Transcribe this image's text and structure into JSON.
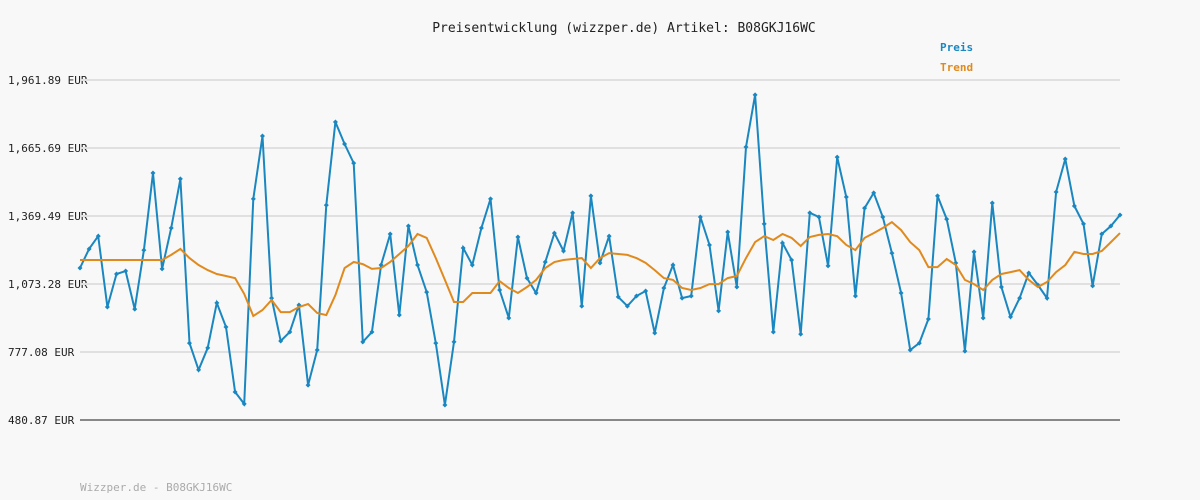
{
  "chart_data": {
    "type": "line",
    "title": "Preisentwicklung (wizzper.de) Artikel: B08GKJ16WC",
    "footer": "Wizzper.de - B08GKJ16WC",
    "ylim": [
      480.87,
      1961.89
    ],
    "yticks": [
      {
        "value": 480.87,
        "label": "480.87 EUR"
      },
      {
        "value": 777.08,
        "label": "777.08 EUR"
      },
      {
        "value": 1073.28,
        "label": "1,073.28 EUR"
      },
      {
        "value": 1369.49,
        "label": "1,369.49 EUR"
      },
      {
        "value": 1665.69,
        "label": "1,665.69 EUR"
      },
      {
        "value": 1961.89,
        "label": "1,961.89 EUR"
      }
    ],
    "grid": true,
    "legend": "top-right",
    "series": [
      {
        "name": "Preis",
        "color": "#1a87c0",
        "markers": true,
        "values": [
          1143,
          1226,
          1282,
          973,
          1117,
          1130,
          964,
          1221,
          1557,
          1139,
          1317,
          1531,
          816,
          699,
          795,
          991,
          886,
          603,
          551,
          1444,
          1718,
          1012,
          825,
          864,
          982,
          633,
          786,
          1417,
          1779,
          1683,
          1600,
          821,
          864,
          1156,
          1291,
          938,
          1326,
          1156,
          1038,
          816,
          546,
          821,
          1230,
          1156,
          1317,
          1444,
          1047,
          925,
          1278,
          1099,
          1034,
          1169,
          1295,
          1217,
          1383,
          977,
          1457,
          1165,
          1282,
          1017,
          977,
          1021,
          1043,
          860,
          1056,
          1156,
          1012,
          1021,
          1365,
          1243,
          956,
          1300,
          1060,
          1670,
          1897,
          1335,
          864,
          1252,
          1178,
          855,
          1383,
          1365,
          1152,
          1626,
          1452,
          1021,
          1404,
          1470,
          1365,
          1208,
          1034,
          786,
          816,
          921,
          1457,
          1356,
          1165,
          781,
          1213,
          925,
          1426,
          1060,
          930,
          1012,
          1121,
          1069,
          1012,
          1474,
          1618,
          1413,
          1335,
          1065,
          1291,
          1326,
          1374
        ]
      },
      {
        "name": "Trend",
        "color": "#e08a1e",
        "markers": false,
        "values": [
          1178,
          1178,
          1178,
          1178,
          1178,
          1178,
          1178,
          1178,
          1178,
          1178,
          1200,
          1226,
          1186,
          1156,
          1134,
          1117,
          1108,
          1099,
          1030,
          934,
          960,
          1004,
          951,
          951,
          973,
          986,
          947,
          938,
          1025,
          1143,
          1169,
          1160,
          1139,
          1143,
          1169,
          1204,
          1239,
          1291,
          1274,
          1186,
          1091,
          995,
          995,
          1034,
          1034,
          1034,
          1086,
          1056,
          1034,
          1060,
          1091,
          1143,
          1169,
          1178,
          1182,
          1186,
          1143,
          1186,
          1208,
          1204,
          1200,
          1186,
          1165,
          1134,
          1099,
          1091,
          1056,
          1047,
          1056,
          1073,
          1073,
          1099,
          1108,
          1186,
          1256,
          1282,
          1265,
          1291,
          1274,
          1239,
          1278,
          1287,
          1291,
          1282,
          1243,
          1221,
          1274,
          1295,
          1317,
          1343,
          1308,
          1256,
          1221,
          1147,
          1147,
          1182,
          1156,
          1091,
          1073,
          1047,
          1091,
          1117,
          1125,
          1134,
          1091,
          1060,
          1082,
          1125,
          1156,
          1213,
          1204,
          1204,
          1217,
          1256,
          1295
        ]
      }
    ]
  }
}
